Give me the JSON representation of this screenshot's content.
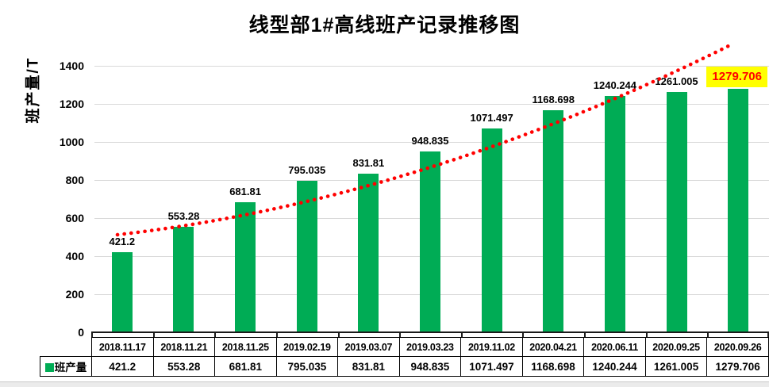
{
  "colors": {
    "bar": "#00AC55",
    "trendline": "#FF0000",
    "highlight_bg": "#FFFF00",
    "highlight_text": "#FF0000",
    "gridline": "#D9D9D9",
    "axis": "#1A1A1A"
  },
  "chart_data": {
    "type": "bar",
    "title": "线型部1#高线班产记录推移图",
    "xlabel": "",
    "ylabel": "班产量/T",
    "ylim": [
      0,
      1400
    ],
    "yticks": [
      0,
      200,
      400,
      600,
      800,
      1000,
      1200,
      1400
    ],
    "grid": true,
    "legend_position": "table-left",
    "categories": [
      "2018.11.17",
      "2018.11.21",
      "2018.11.25",
      "2019.02.19",
      "2019.03.07",
      "2019.03.23",
      "2019.11.02",
      "2020.04.21",
      "2020.06.11",
      "2020.09.25",
      "2020.09.26"
    ],
    "series": [
      {
        "name": "班产量",
        "values": [
          421.2,
          553.28,
          681.81,
          795.035,
          831.81,
          948.835,
          1071.497,
          1168.698,
          1240.244,
          1261.005,
          1279.706
        ]
      }
    ],
    "data_labels": [
      "421.2",
      "553.28",
      "681.81",
      "795.035",
      "831.81",
      "948.835",
      "1071.497",
      "1168.698",
      "1240.244",
      "1261.005",
      "1279.706"
    ],
    "highlight": {
      "index": 10,
      "label": "1279.706"
    },
    "trendline": {
      "style": "dotted",
      "color": "#FF0000",
      "shape": "rising-curve"
    }
  }
}
